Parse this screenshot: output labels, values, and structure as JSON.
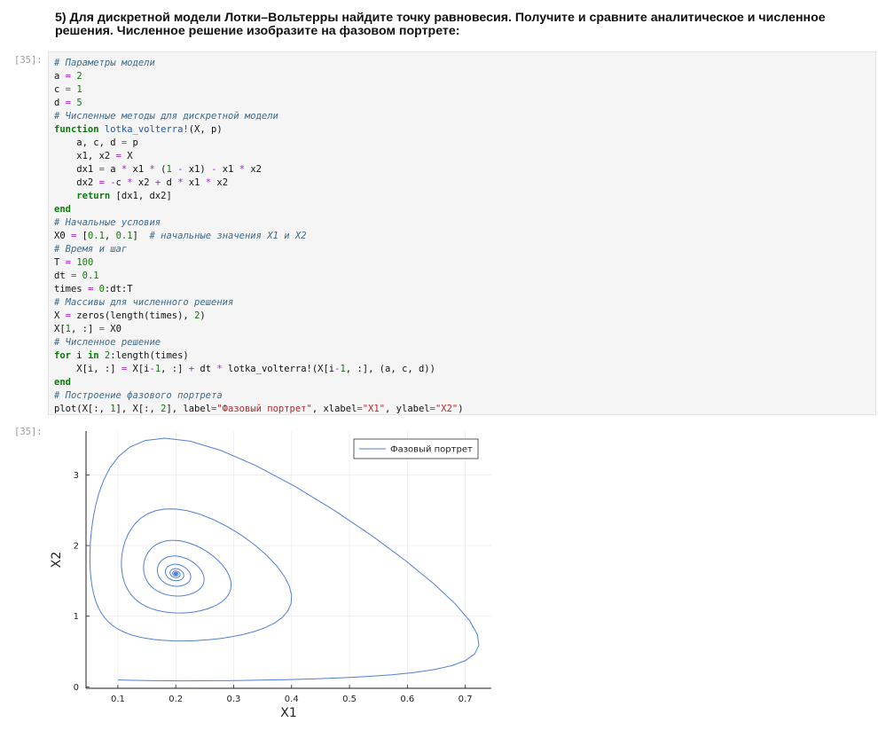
{
  "task_heading": "5) Для дискретной модели Лотки–Вольтерры найдите точку равновесия. Получите и сравните аналитическое и численное решения. Численное решение изобразите на фазовом портрете:",
  "cell": {
    "input_prompt": "[35]:",
    "output_prompt": "[35]:"
  },
  "code_lines": [
    "# Параметры модели",
    "a = 2",
    "c = 1",
    "d = 5",
    "# Численные методы для дискретной модели",
    "function lotka_volterra!(X, p)",
    "    a, c, d = p",
    "    x1, x2 = X",
    "    dx1 = a * x1 * (1 - x1) - x1 * x2",
    "    dx2 = -c * x2 + d * x1 * x2",
    "    return [dx1, dx2]",
    "end",
    "# Начальные условия",
    "X0 = [0.1, 0.1]  # начальные значения X1 и X2",
    "# Время и шаг",
    "T = 100",
    "dt = 0.1",
    "times = 0:dt:T",
    "# Массивы для численного решения",
    "X = zeros(length(times), 2)",
    "X[1, :] = X0",
    "# Численное решение",
    "for i in 2:length(times)",
    "    X[i, :] = X[i-1, :] + dt * lotka_volterra!(X[i-1, :], (a, c, d))",
    "end",
    "# Построение фазового портрета",
    "plot(X[:, 1], X[:, 2], label=\"Фазовый портрет\", xlabel=\"X1\", ylabel=\"X2\")"
  ],
  "chart_data": {
    "type": "line",
    "series": [
      {
        "name": "Фазовый портрет",
        "color": "#4f7fd6",
        "model": {
          "a": 2,
          "c": 1,
          "d": 5,
          "dt": 0.1,
          "T": 100,
          "x0": [
            0.1,
            0.1
          ]
        }
      }
    ],
    "xlabel": "X1",
    "ylabel": "X2",
    "xlim": [
      0.045,
      0.745
    ],
    "ylim": [
      -0.02,
      3.62
    ],
    "xticks": [
      0.1,
      0.2,
      0.3,
      0.4,
      0.5,
      0.6,
      0.7
    ],
    "yticks": [
      0,
      1,
      2,
      3
    ],
    "xtick_labels": [
      "0.1",
      "0.2",
      "0.3",
      "0.4",
      "0.5",
      "0.6",
      "0.7"
    ],
    "ytick_labels": [
      "0",
      "1",
      "2",
      "3"
    ],
    "grid": true,
    "legend_position": "top-right",
    "equilibrium": [
      0.2,
      1.6
    ]
  }
}
